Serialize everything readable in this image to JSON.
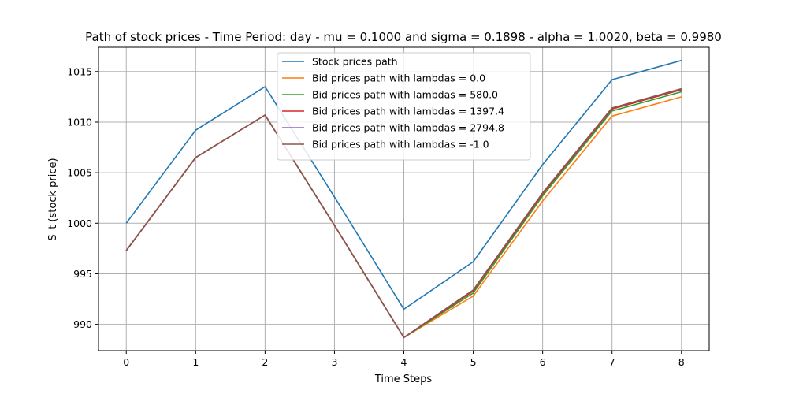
{
  "chart_data": {
    "type": "line",
    "title": "Path of stock prices - Time Period: day - mu = 0.1000 and sigma = 0.1898 - alpha = 1.0020, beta = 0.9980",
    "xlabel": "Time Steps",
    "ylabel": "S_t (stock price)",
    "xlim": [
      -0.4,
      8.4
    ],
    "ylim": [
      987.4,
      1017.4
    ],
    "x_ticks": [
      0,
      1,
      2,
      3,
      4,
      5,
      6,
      7,
      8
    ],
    "y_ticks": [
      990,
      995,
      1000,
      1005,
      1010,
      1015
    ],
    "grid": true,
    "legend_position": "top-center",
    "x": [
      0,
      1,
      2,
      3,
      4,
      5,
      6,
      7,
      8
    ],
    "series": [
      {
        "name": "Stock prices path",
        "color": "#1f77b4",
        "values": [
          1000.0,
          1009.2,
          1013.5,
          1002.6,
          991.5,
          996.2,
          1005.8,
          1014.2,
          1016.1
        ]
      },
      {
        "name": "Bid prices path with lambdas = 0.0",
        "color": "#ff7f0e",
        "values": [
          997.3,
          1006.5,
          1010.7,
          999.8,
          988.7,
          992.8,
          1002.2,
          1010.6,
          1012.5
        ]
      },
      {
        "name": "Bid prices path with lambdas = 580.0",
        "color": "#2ca02c",
        "values": [
          997.3,
          1006.5,
          1010.7,
          999.8,
          988.7,
          993.1,
          1002.7,
          1011.1,
          1013.0
        ]
      },
      {
        "name": "Bid prices path with lambdas = 1397.4",
        "color": "#d62728",
        "values": [
          997.3,
          1006.5,
          1010.7,
          999.8,
          988.7,
          993.3,
          1002.9,
          1011.3,
          1013.2
        ]
      },
      {
        "name": "Bid prices path with lambdas = 2794.8",
        "color": "#9467bd",
        "values": [
          997.3,
          1006.5,
          1010.7,
          999.8,
          988.7,
          993.4,
          1003.0,
          1011.4,
          1013.3
        ]
      },
      {
        "name": "Bid prices path with lambdas = -1.0",
        "color": "#8c564b",
        "values": [
          997.3,
          1006.5,
          1010.7,
          999.8,
          988.7,
          993.4,
          1003.0,
          1011.4,
          1013.3
        ]
      }
    ]
  }
}
